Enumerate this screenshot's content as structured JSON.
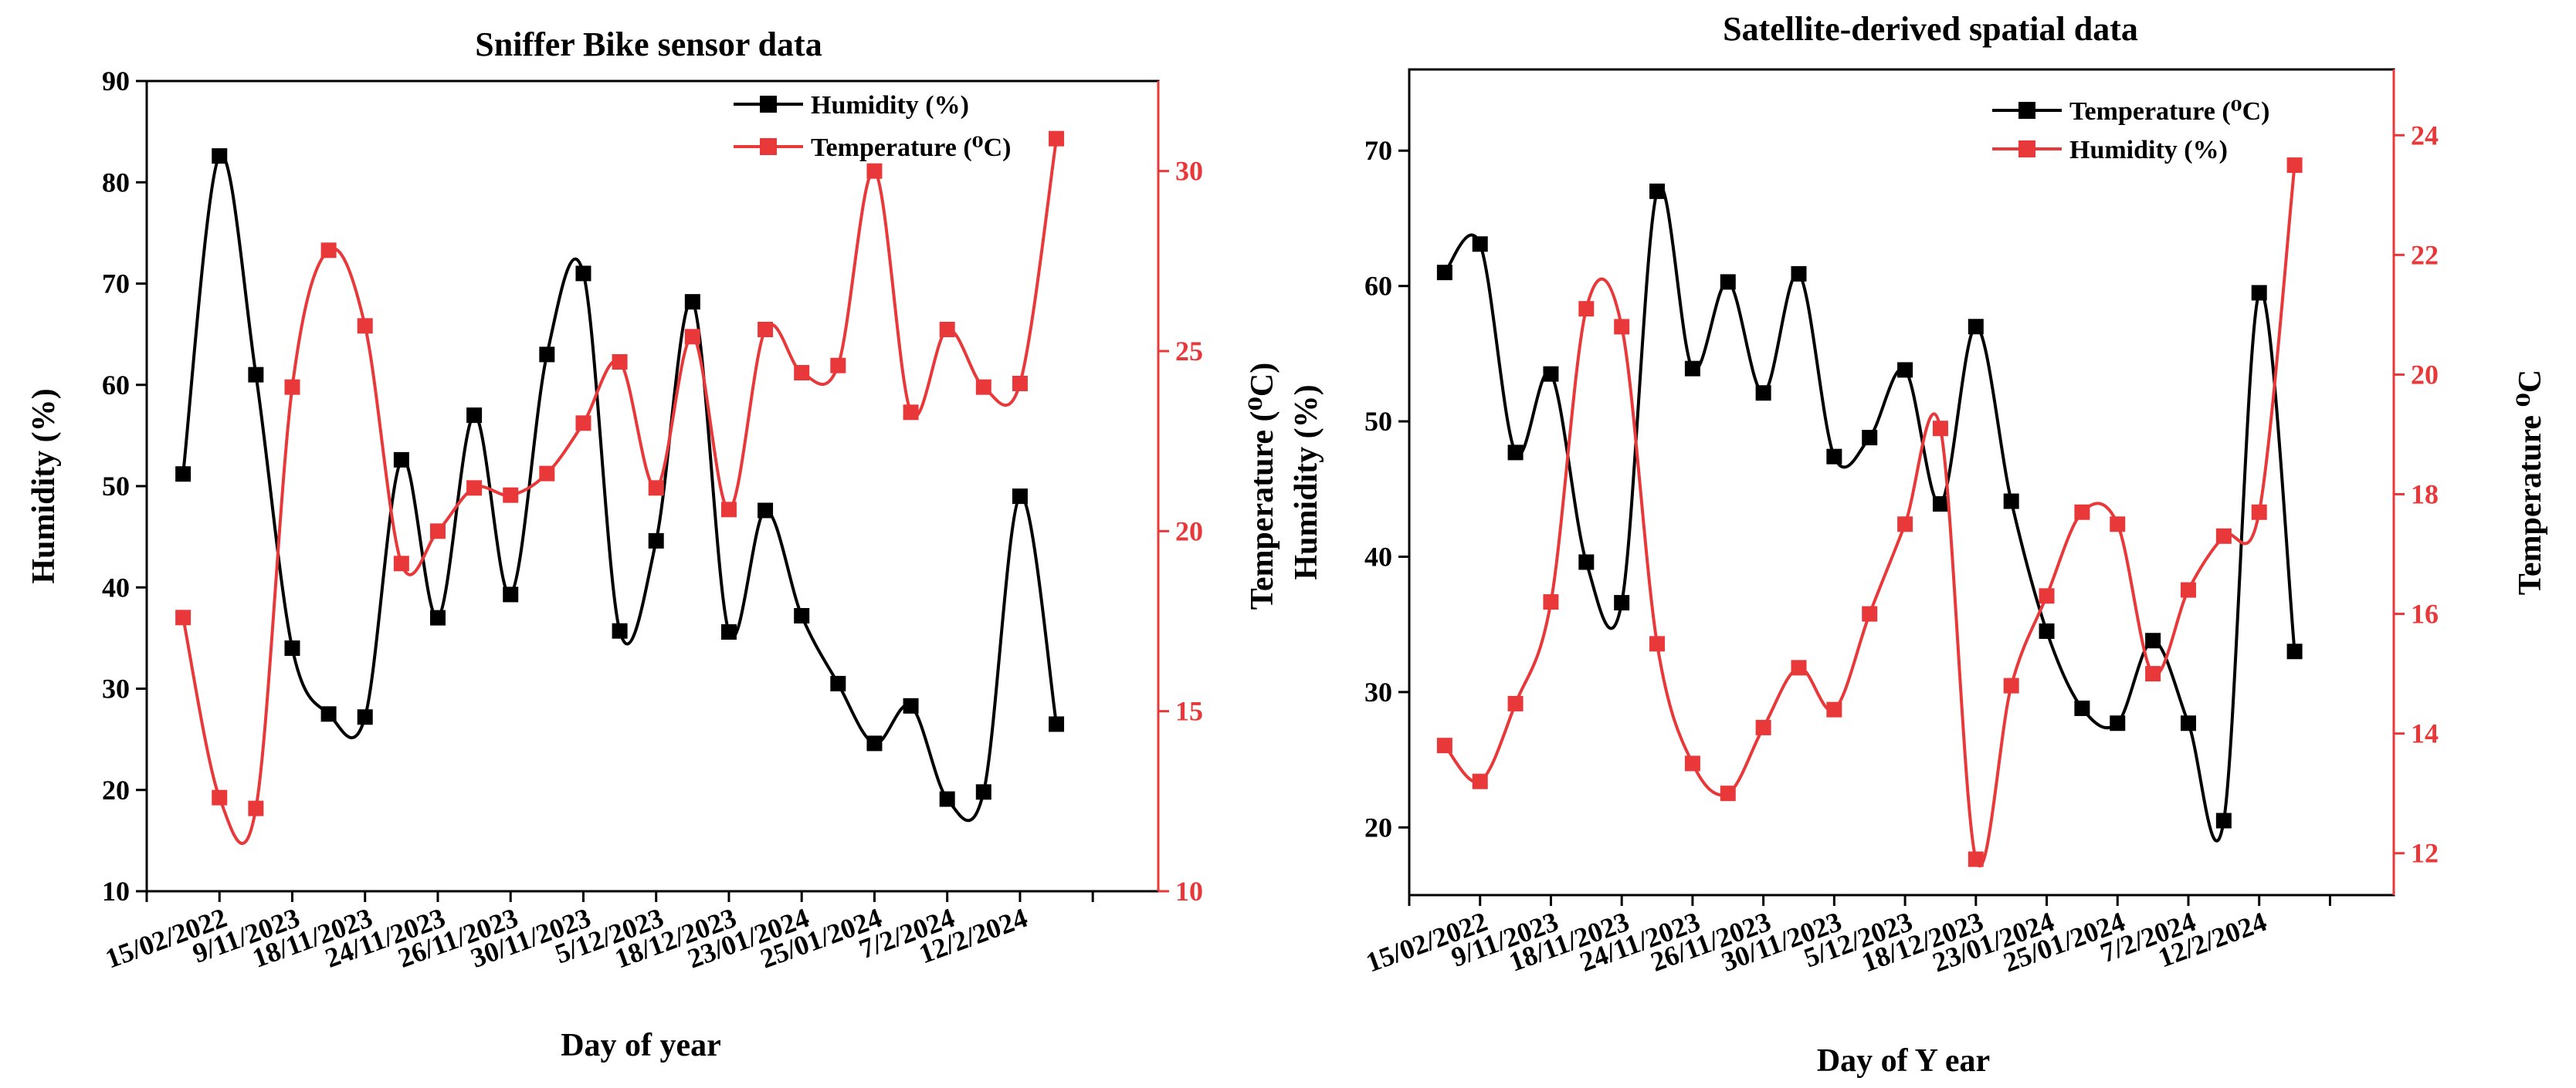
{
  "charts": [
    {
      "title": "Sniffer Bike sensor data",
      "xlabel": "Day of year",
      "ylabel_left": "Humidity (%)",
      "ylabel_right": "Temperature (⁰C)",
      "legend": [
        {
          "label": "Humidity (%)",
          "color": "#000000"
        },
        {
          "label": "Temperature (⁰C)",
          "color": "#e8383a"
        }
      ]
    },
    {
      "title": "Satellite-derived spatial data",
      "xlabel": "Day of Y ear",
      "ylabel_left": "Humidity (%)",
      "ylabel_right": "Temperature ⁰C",
      "legend": [
        {
          "label": "Temperature (⁰C)",
          "color": "#000000"
        },
        {
          "label": "Humidity (%)",
          "color": "#e8383a"
        }
      ]
    }
  ],
  "chart_data": [
    {
      "type": "line",
      "title": "Sniffer Bike sensor data",
      "xlabel": "Day of year",
      "ylabel": "Humidity (%)",
      "y2label": "Temperature (⁰C)",
      "categories": [
        "15/02/2022",
        "9/11/2023",
        "18/11/2023",
        "24/11/2023",
        "26/11/2023",
        "30/11/2023",
        "5/12/2023",
        "18/12/2023",
        "23/01/2024",
        "25/01/2024",
        "7/2/2024",
        "12/2/2024"
      ],
      "xlim": [
        -1,
        12.9
      ],
      "xticks": [
        -1,
        0,
        1,
        2,
        3,
        4,
        5,
        6,
        7,
        8,
        9,
        10,
        11,
        12
      ],
      "ylim": [
        10,
        90
      ],
      "yticks": [
        10,
        20,
        30,
        40,
        50,
        60,
        70,
        80,
        90
      ],
      "y2lim": [
        10,
        32.5
      ],
      "y2ticks": [
        10,
        15,
        20,
        25,
        30
      ],
      "series": [
        {
          "name": "Humidity (%)",
          "axis": "left",
          "color": "#000000",
          "x": [
            -0.5,
            0,
            0.5,
            1,
            1.5,
            2,
            2.5,
            3,
            3.5,
            4,
            4.5,
            5,
            5.5,
            6,
            6.5,
            7,
            7.5,
            8,
            8.5,
            9,
            9.5,
            10,
            10.5,
            11,
            11.5
          ],
          "values": [
            51.2,
            82.6,
            61.0,
            34.0,
            27.5,
            27.2,
            52.6,
            37.0,
            57.0,
            39.3,
            63.0,
            71.0,
            35.7,
            44.6,
            68.2,
            35.6,
            47.6,
            37.2,
            30.5,
            24.6,
            28.3,
            19.1,
            19.8,
            49.0,
            26.5
          ]
        },
        {
          "name": "Temperature (⁰C)",
          "axis": "right",
          "color": "#e8383a",
          "x": [
            -0.5,
            0,
            0.5,
            1,
            1.5,
            2,
            2.5,
            3,
            3.5,
            4,
            4.5,
            5,
            5.5,
            6,
            6.5,
            7,
            7.5,
            8,
            8.5,
            9,
            9.5,
            10,
            10.5,
            11,
            11.5
          ],
          "values": [
            17.6,
            12.6,
            12.3,
            24.0,
            27.8,
            25.7,
            19.1,
            20.0,
            21.2,
            21.0,
            21.6,
            23.0,
            24.7,
            21.2,
            25.4,
            20.6,
            25.6,
            24.4,
            24.6,
            30.0,
            23.3,
            25.6,
            24.0,
            24.1,
            30.9
          ]
        }
      ]
    },
    {
      "type": "line",
      "title": "Satellite-derived spatial data",
      "xlabel": "Day of Y ear",
      "ylabel": "Humidity (%)",
      "y2label": "Temperature ⁰C",
      "categories": [
        "15/02/2022",
        "9/11/2023",
        "18/11/2023",
        "24/11/2023",
        "26/11/2023",
        "30/11/2023",
        "5/12/2023",
        "18/12/2023",
        "23/01/2024",
        "25/01/2024",
        "7/2/2024",
        "12/2/2024"
      ],
      "xlim": [
        -1,
        12.9
      ],
      "xticks": [
        -1,
        0,
        1,
        2,
        3,
        4,
        5,
        6,
        7,
        8,
        9,
        10,
        11,
        12
      ],
      "ylim": [
        15,
        76
      ],
      "yticks": [
        20,
        30,
        40,
        50,
        60,
        70
      ],
      "y2lim": [
        11.3,
        25.1
      ],
      "y2ticks": [
        12,
        14,
        16,
        18,
        20,
        22,
        24
      ],
      "series": [
        {
          "name": "Temperature (⁰C)",
          "axis": "left",
          "color": "#000000",
          "x": [
            -0.5,
            0,
            0.5,
            1,
            1.5,
            2,
            2.5,
            3,
            3.5,
            4,
            4.5,
            5,
            5.5,
            6,
            6.5,
            7,
            7.5,
            8,
            8.5,
            9,
            9.5,
            10,
            10.5,
            11,
            11.5
          ],
          "values": [
            61.0,
            63.1,
            47.7,
            53.5,
            39.6,
            36.6,
            67.0,
            53.9,
            60.3,
            52.1,
            60.9,
            47.4,
            48.8,
            53.8,
            43.9,
            57.0,
            44.1,
            34.5,
            28.8,
            27.7,
            33.8,
            27.7,
            20.5,
            59.5,
            33.0
          ]
        },
        {
          "name": "Humidity (%)",
          "axis": "right",
          "color": "#e8383a",
          "x": [
            -0.5,
            0,
            0.5,
            1,
            1.5,
            2,
            2.5,
            3,
            3.5,
            4,
            4.5,
            5,
            5.5,
            6,
            6.5,
            7,
            7.5,
            8,
            8.5,
            9,
            9.5,
            10,
            10.5,
            11,
            11.5
          ],
          "values": [
            13.8,
            13.2,
            14.5,
            16.2,
            21.1,
            20.8,
            15.5,
            13.5,
            13.0,
            14.1,
            15.1,
            14.4,
            16.0,
            17.5,
            19.1,
            11.9,
            14.8,
            16.3,
            17.7,
            17.5,
            15.0,
            16.4,
            17.3,
            17.7,
            23.5
          ]
        }
      ]
    }
  ]
}
